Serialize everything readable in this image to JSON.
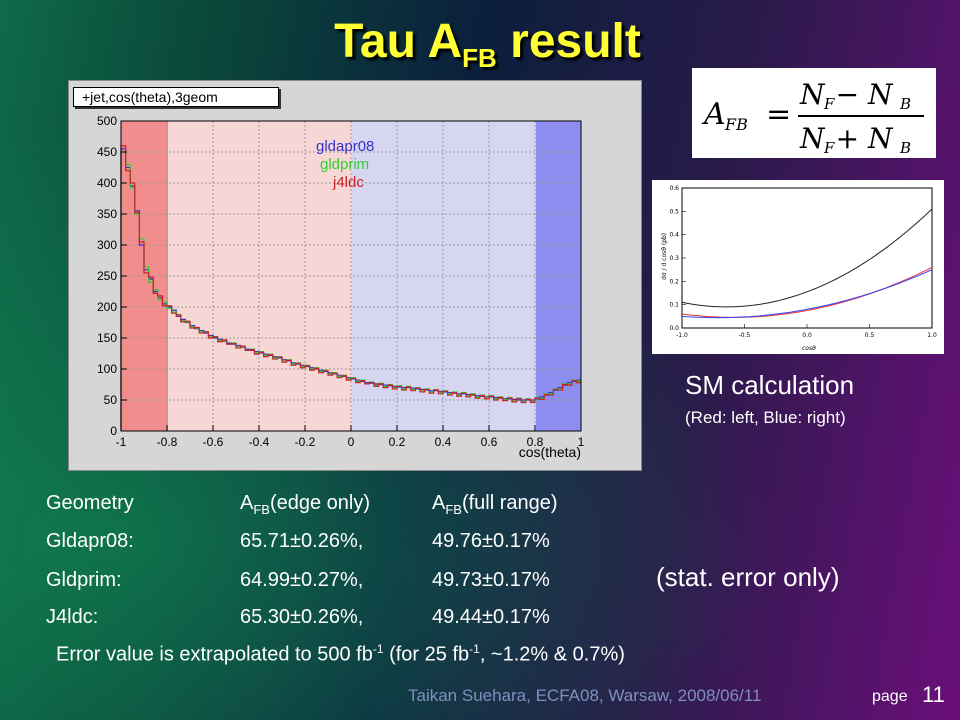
{
  "title": {
    "main": "Tau A",
    "sub": "FB",
    "tail": " result"
  },
  "plot": {
    "label": "+jet,cos(theta),3geom",
    "xlabel": "cos(theta)",
    "colors": {
      "gldapr08": "#3333cc",
      "gldprim": "#33cc33",
      "j4ldc": "#cc2222"
    }
  },
  "chart_data": {
    "type": "line",
    "title": "+jet,cos(theta),3geom",
    "xlabel": "cos(theta)",
    "ylabel": "",
    "xlim": [
      -1,
      1
    ],
    "ylim": [
      0,
      500
    ],
    "x_ticks": [
      "-1",
      "-0.8",
      "-0.6",
      "-0.4",
      "-0.2",
      "0",
      "0.2",
      "0.4",
      "0.6",
      "0.8",
      "1"
    ],
    "y_ticks": [
      "0",
      "50",
      "100",
      "150",
      "200",
      "250",
      "300",
      "350",
      "400",
      "450",
      "500"
    ],
    "legend_position": "top-right",
    "bin_width": 0.02,
    "series": [
      {
        "name": "gldapr08",
        "color": "#3333cc",
        "values": [
          455,
          425,
          395,
          355,
          300,
          260,
          245,
          225,
          215,
          205,
          200,
          195,
          185,
          180,
          175,
          170,
          165,
          162,
          158,
          154,
          150,
          148,
          145,
          142,
          140,
          138,
          135,
          132,
          130,
          128,
          126,
          124,
          122,
          120,
          118,
          115,
          113,
          110,
          108,
          106,
          104,
          102,
          100,
          98,
          96,
          94,
          92,
          90,
          88,
          86,
          84,
          82,
          80,
          78,
          77,
          76,
          75,
          74,
          73,
          72,
          71,
          70,
          70,
          69,
          68,
          67,
          66,
          65,
          65,
          64,
          63,
          62,
          61,
          60,
          60,
          59,
          58,
          57,
          56,
          55,
          55,
          54,
          53,
          52,
          52,
          51,
          50,
          50,
          50,
          50,
          52,
          55,
          58,
          62,
          66,
          70,
          74,
          78,
          80,
          82
        ]
      },
      {
        "name": "gldprim",
        "color": "#33cc33",
        "values": [
          450,
          430,
          392,
          350,
          310,
          265,
          240,
          228,
          212,
          208,
          198,
          192,
          188,
          178,
          176,
          168,
          166,
          160,
          160,
          152,
          152,
          146,
          146,
          140,
          142,
          136,
          136,
          130,
          132,
          126,
          128,
          122,
          124,
          118,
          120,
          113,
          115,
          108,
          110,
          104,
          106,
          100,
          102,
          96,
          98,
          92,
          94,
          88,
          90,
          84,
          86,
          80,
          82,
          76,
          79,
          74,
          77,
          72,
          75,
          70,
          73,
          68,
          72,
          67,
          70,
          65,
          68,
          63,
          67,
          62,
          65,
          60,
          63,
          58,
          62,
          57,
          60,
          55,
          58,
          54,
          57,
          52,
          55,
          51,
          54,
          49,
          53,
          48,
          52,
          48,
          54,
          53,
          60,
          60,
          68,
          68,
          76,
          76,
          82,
          80
        ]
      },
      {
        "name": "j4ldc",
        "color": "#cc2222",
        "values": [
          460,
          420,
          400,
          352,
          305,
          255,
          248,
          222,
          218,
          202,
          202,
          190,
          187,
          176,
          177,
          166,
          167,
          158,
          160,
          150,
          152,
          144,
          147,
          140,
          141,
          134,
          137,
          130,
          131,
          124,
          127,
          120,
          123,
          116,
          119,
          111,
          114,
          106,
          109,
          102,
          105,
          98,
          101,
          94,
          97,
          90,
          93,
          86,
          89,
          82,
          85,
          78,
          81,
          76,
          78,
          72,
          76,
          70,
          74,
          68,
          72,
          66,
          71,
          65,
          69,
          63,
          67,
          61,
          66,
          60,
          64,
          58,
          62,
          56,
          61,
          55,
          59,
          53,
          57,
          52,
          56,
          50,
          54,
          49,
          53,
          47,
          52,
          46,
          51,
          46,
          53,
          51,
          59,
          58,
          67,
          66,
          75,
          74,
          81,
          78
        ]
      }
    ]
  },
  "formula": {
    "lhs": "A",
    "lhs_sub": "FB",
    "eq": "=",
    "num": "N  − N",
    "num_f": "F",
    "num_b": "B",
    "den": "N  + N",
    "den_f": "F",
    "den_b": "B"
  },
  "sm_plot": {
    "ylabel": "dσ / d cosθ (pb)",
    "xlabel": "cosθ",
    "x_ticks": [
      "-1.0",
      "-0.5",
      "0.0",
      "0.5",
      "1.0"
    ],
    "y_ticks": [
      "0.0",
      "0.1",
      "0.2",
      "0.3",
      "0.4",
      "0.5",
      "0.6"
    ],
    "colors": {
      "total": "#222222",
      "left": "#ee3333",
      "right": "#3344ee"
    }
  },
  "sm_title": "SM calculation",
  "sm_sub": "(Red: left, Blue: right)",
  "table": {
    "header": {
      "col1": "Geometry",
      "col2_pre": "A",
      "col2_sub": "FB",
      "col2_post": "(edge only)",
      "col3_pre": "A",
      "col3_sub": "FB",
      "col3_post": "(full range)"
    },
    "rows": [
      {
        "geom": "Gldapr08:",
        "edge": "65.71±0.26%,",
        "full": "49.76±0.17%"
      },
      {
        "geom": "Gldprim:",
        "edge": "64.99±0.27%,",
        "full": "49.73±0.17%"
      },
      {
        "geom": "J4ldc:",
        "edge": "65.30±0.26%,",
        "full": "49.44±0.17%"
      }
    ]
  },
  "stat_note": "(stat. error only)",
  "note": {
    "p1": "Error value is extrapolated to 500 fb",
    "s1": "-1",
    "p2": " (for 25 fb",
    "s2": "-1",
    "p3": ", ~1.2% & 0.7%)"
  },
  "footer": "Taikan Suehara, ECFA08, Warsaw, 2008/06/11",
  "page_word": "page",
  "page_number": "11"
}
